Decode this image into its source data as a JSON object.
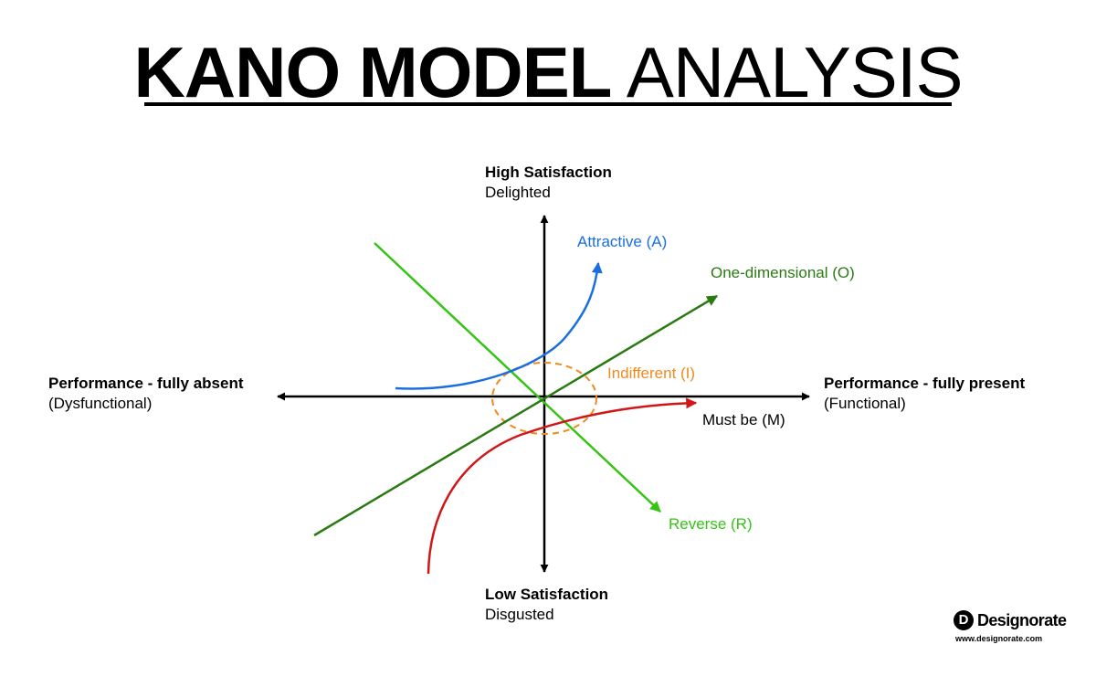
{
  "title": {
    "bold": "KANO MODEL",
    "light": "ANALYSIS"
  },
  "axes": {
    "top": {
      "title": "High Satisfaction",
      "sub": "Delighted"
    },
    "bottom": {
      "title": "Low Satisfaction",
      "sub": "Disgusted"
    },
    "left": {
      "title": "Performance - fully absent",
      "sub": "(Dysfunctional)"
    },
    "right": {
      "title": "Performance - fully present",
      "sub": "(Functional)"
    }
  },
  "curves": {
    "attractive": {
      "label": "Attractive (A)",
      "color": "#1a6fe0"
    },
    "one_dimensional": {
      "label": "One-dimensional (O)",
      "color": "#2a7a12"
    },
    "indifferent": {
      "label": "Indifferent (I)",
      "color": "#ef8a1f"
    },
    "must_be": {
      "label": "Must be (M)",
      "color": "#d01616"
    },
    "reverse": {
      "label": "Reverse (R)",
      "color": "#35c414"
    }
  },
  "logo": {
    "mark": "D",
    "name": "Designorate",
    "url": "www.designorate.com"
  }
}
